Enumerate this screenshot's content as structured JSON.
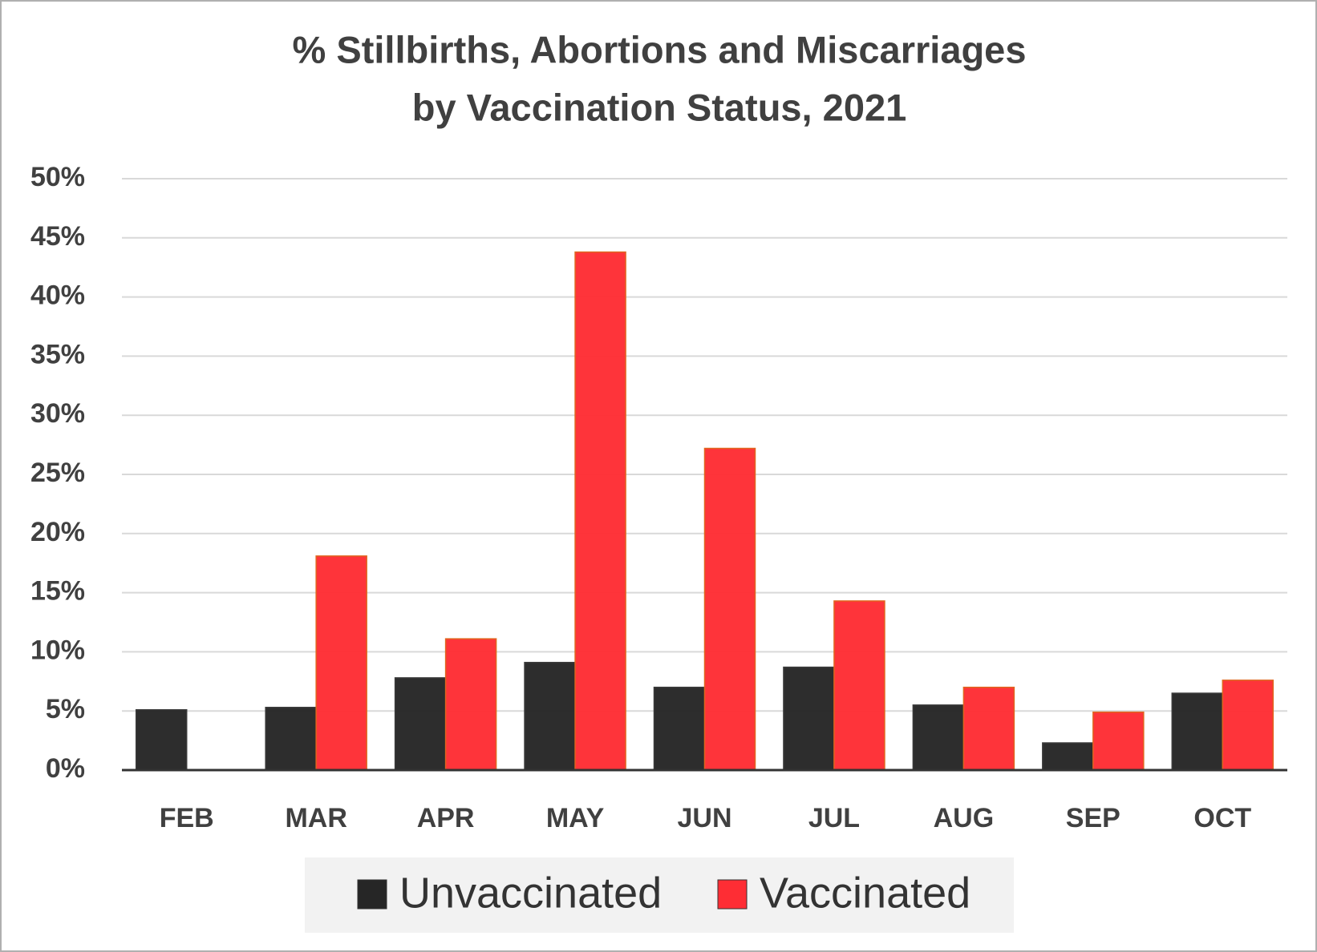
{
  "chart_data": {
    "type": "bar",
    "title": [
      "% Stillbirths, Abortions and Miscarriages",
      "by Vaccination Status, 2021"
    ],
    "categories": [
      "FEB",
      "MAR",
      "APR",
      "MAY",
      "JUN",
      "JUL",
      "AUG",
      "SEP",
      "OCT"
    ],
    "series": [
      {
        "name": "Unvaccinated",
        "color": "#262626",
        "values": [
          5.1,
          5.3,
          7.8,
          9.1,
          7.0,
          8.7,
          5.5,
          2.3,
          6.5
        ]
      },
      {
        "name": "Vaccinated",
        "color": "#fe2d34",
        "values": [
          null,
          18.1,
          11.1,
          43.8,
          27.2,
          14.3,
          7.0,
          4.9,
          7.6
        ]
      }
    ],
    "ylim": [
      0,
      50
    ],
    "yticks": [
      {
        "value": 0,
        "label": "0%"
      },
      {
        "value": 5,
        "label": "5%"
      },
      {
        "value": 10,
        "label": "10%"
      },
      {
        "value": 15,
        "label": "15%"
      },
      {
        "value": 20,
        "label": "20%"
      },
      {
        "value": 25,
        "label": "25%"
      },
      {
        "value": 30,
        "label": "30%"
      },
      {
        "value": 35,
        "label": "35%"
      },
      {
        "value": 40,
        "label": "40%"
      },
      {
        "value": 45,
        "label": "45%"
      },
      {
        "value": 50,
        "label": "50%"
      }
    ],
    "grid": true,
    "legend": "bottom"
  }
}
